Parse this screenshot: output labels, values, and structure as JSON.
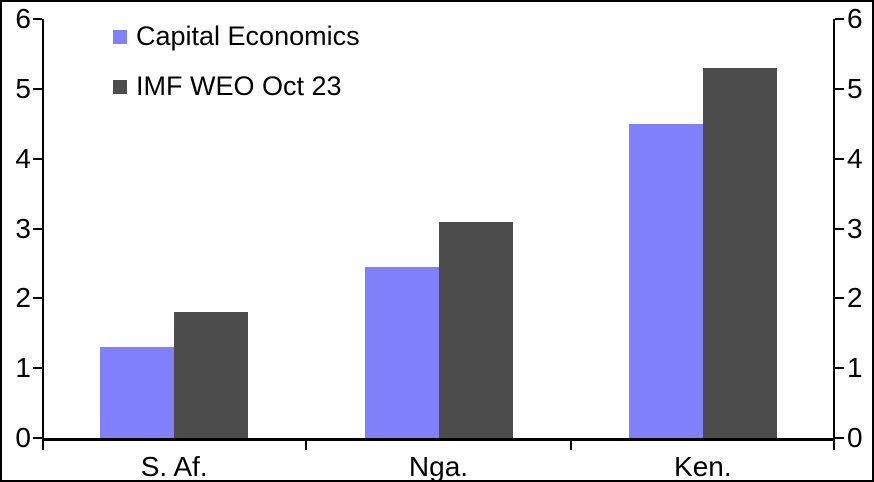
{
  "chart_data": {
    "type": "bar",
    "title": "",
    "xlabel": "",
    "ylabel": "",
    "categories": [
      "S. Af.",
      "Nga.",
      "Ken."
    ],
    "series": [
      {
        "name": "Capital Economics",
        "color": "#8080FA",
        "values": [
          1.3,
          2.45,
          4.5
        ]
      },
      {
        "name": "IMF WEO Oct 23",
        "color": "#4C4C4C",
        "values": [
          1.8,
          3.1,
          5.3
        ]
      }
    ],
    "ylim": [
      0,
      6
    ],
    "yticks": [
      0,
      1,
      2,
      3,
      4,
      5,
      6
    ],
    "yticks_mirrored_right_axis": true,
    "grid": false,
    "legend_position": "top-left",
    "axis_color": "#000000",
    "background_color": "#FFFFFF"
  }
}
